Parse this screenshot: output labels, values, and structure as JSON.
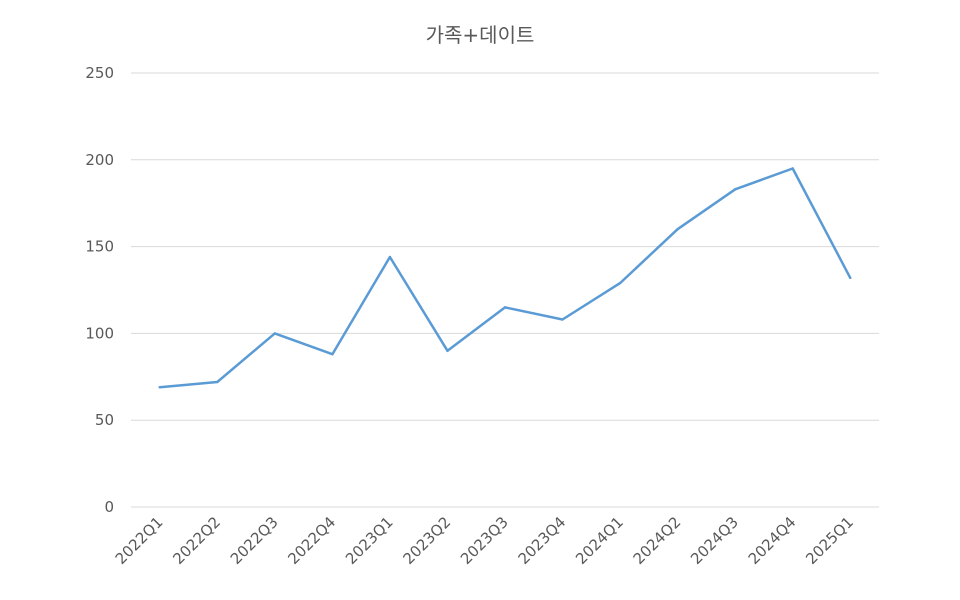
{
  "chart_data": {
    "type": "line",
    "title": "가족+데이트",
    "xlabel": "",
    "ylabel": "",
    "categories": [
      "2022Q1",
      "2022Q2",
      "2022Q3",
      "2022Q4",
      "2023Q1",
      "2023Q2",
      "2023Q3",
      "2023Q4",
      "2024Q1",
      "2024Q2",
      "2024Q3",
      "2024Q4",
      "2025Q1"
    ],
    "series": [
      {
        "values": [
          69,
          72,
          100,
          88,
          144,
          90,
          115,
          108,
          129,
          160,
          183,
          195,
          132
        ],
        "color": "#5b9bd5"
      }
    ],
    "ylim": [
      0,
      250
    ],
    "yticks": [
      0,
      50,
      100,
      150,
      200,
      250
    ],
    "grid": true,
    "legend": "none"
  }
}
